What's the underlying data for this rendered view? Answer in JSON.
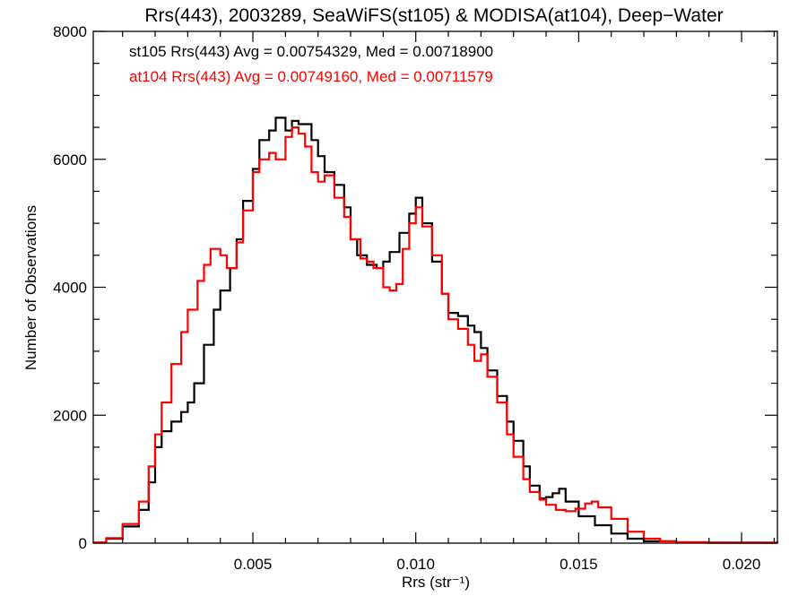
{
  "chart_data": {
    "type": "line",
    "title": "Rrs(443), 2003289, SeaWiFS(st105) & MODISA(at104), Deep−Water",
    "xlabel": "Rrs (str⁻¹)",
    "ylabel": "Number of Observations",
    "xlim": [
      0.0001,
      0.0211
    ],
    "ylim": [
      0,
      8000
    ],
    "x_ticks": [
      {
        "value": 0.005,
        "label": "0.005"
      },
      {
        "value": 0.01,
        "label": "0.010"
      },
      {
        "value": 0.015,
        "label": "0.015"
      },
      {
        "value": 0.02,
        "label": "0.020"
      }
    ],
    "y_ticks": [
      {
        "value": 0,
        "label": "0"
      },
      {
        "value": 2000,
        "label": "2000"
      },
      {
        "value": 4000,
        "label": "4000"
      },
      {
        "value": 6000,
        "label": "6000"
      },
      {
        "value": 8000,
        "label": "8000"
      }
    ],
    "grid": false,
    "series": [
      {
        "name": "st105",
        "label": "st105 Rrs(443) Avg = 0.00754329, Med = 0.00718900",
        "color": "#000000",
        "points": [
          [
            0.0001,
            10
          ],
          [
            0.0005,
            70
          ],
          [
            0.001,
            260
          ],
          [
            0.0015,
            520
          ],
          [
            0.0018,
            950
          ],
          [
            0.002,
            1500
          ],
          [
            0.0022,
            1750
          ],
          [
            0.0025,
            1900
          ],
          [
            0.0028,
            2050
          ],
          [
            0.003,
            2200
          ],
          [
            0.0032,
            2500
          ],
          [
            0.0035,
            3100
          ],
          [
            0.0038,
            3650
          ],
          [
            0.004,
            3950
          ],
          [
            0.0043,
            4300
          ],
          [
            0.0045,
            4750
          ],
          [
            0.0047,
            5350
          ],
          [
            0.005,
            5850
          ],
          [
            0.0052,
            6300
          ],
          [
            0.0055,
            6450
          ],
          [
            0.0057,
            6650
          ],
          [
            0.006,
            6450
          ],
          [
            0.0062,
            6600
          ],
          [
            0.0064,
            6550
          ],
          [
            0.0066,
            6550
          ],
          [
            0.0068,
            6300
          ],
          [
            0.007,
            6050
          ],
          [
            0.0072,
            5800
          ],
          [
            0.0075,
            5600
          ],
          [
            0.0078,
            5250
          ],
          [
            0.008,
            4750
          ],
          [
            0.0082,
            4500
          ],
          [
            0.0085,
            4350
          ],
          [
            0.0088,
            4300
          ],
          [
            0.009,
            4400
          ],
          [
            0.0092,
            4550
          ],
          [
            0.0095,
            4850
          ],
          [
            0.0098,
            5150
          ],
          [
            0.01,
            5400
          ],
          [
            0.0102,
            5000
          ],
          [
            0.0105,
            4400
          ],
          [
            0.0108,
            3900
          ],
          [
            0.011,
            3600
          ],
          [
            0.0113,
            3550
          ],
          [
            0.0116,
            3400
          ],
          [
            0.0118,
            3300
          ],
          [
            0.012,
            3050
          ],
          [
            0.0122,
            2700
          ],
          [
            0.0125,
            2300
          ],
          [
            0.0128,
            1900
          ],
          [
            0.013,
            1600
          ],
          [
            0.0133,
            1200
          ],
          [
            0.0135,
            900
          ],
          [
            0.0138,
            700
          ],
          [
            0.014,
            720
          ],
          [
            0.0142,
            780
          ],
          [
            0.0144,
            850
          ],
          [
            0.0146,
            650
          ],
          [
            0.015,
            420
          ],
          [
            0.0155,
            280
          ],
          [
            0.016,
            150
          ],
          [
            0.0165,
            70
          ],
          [
            0.017,
            30
          ],
          [
            0.018,
            10
          ],
          [
            0.0211,
            0
          ]
        ]
      },
      {
        "name": "at104",
        "label": "at104 Rrs(443) Avg = 0.00749160, Med = 0.00711579",
        "color": "#ff0000",
        "points": [
          [
            0.0001,
            10
          ],
          [
            0.0005,
            80
          ],
          [
            0.001,
            300
          ],
          [
            0.0015,
            650
          ],
          [
            0.0018,
            1200
          ],
          [
            0.002,
            1700
          ],
          [
            0.0022,
            2200
          ],
          [
            0.0025,
            2800
          ],
          [
            0.0028,
            3300
          ],
          [
            0.003,
            3650
          ],
          [
            0.0033,
            4100
          ],
          [
            0.0035,
            4350
          ],
          [
            0.0037,
            4600
          ],
          [
            0.004,
            4500
          ],
          [
            0.0042,
            4300
          ],
          [
            0.0045,
            4700
          ],
          [
            0.0047,
            5200
          ],
          [
            0.005,
            5800
          ],
          [
            0.0052,
            6000
          ],
          [
            0.0055,
            6100
          ],
          [
            0.0057,
            6000
          ],
          [
            0.006,
            6350
          ],
          [
            0.0062,
            6500
          ],
          [
            0.0064,
            6400
          ],
          [
            0.0066,
            6200
          ],
          [
            0.0068,
            5800
          ],
          [
            0.007,
            5650
          ],
          [
            0.0072,
            5750
          ],
          [
            0.0075,
            5400
          ],
          [
            0.0078,
            5100
          ],
          [
            0.008,
            4750
          ],
          [
            0.0083,
            4450
          ],
          [
            0.0085,
            4400
          ],
          [
            0.0087,
            4300
          ],
          [
            0.009,
            4000
          ],
          [
            0.0092,
            3950
          ],
          [
            0.0094,
            4050
          ],
          [
            0.0096,
            4600
          ],
          [
            0.0098,
            5000
          ],
          [
            0.01,
            5250
          ],
          [
            0.0102,
            4950
          ],
          [
            0.0105,
            4500
          ],
          [
            0.0108,
            3900
          ],
          [
            0.011,
            3500
          ],
          [
            0.0113,
            3350
          ],
          [
            0.0116,
            3100
          ],
          [
            0.0118,
            2850
          ],
          [
            0.012,
            2950
          ],
          [
            0.0122,
            2600
          ],
          [
            0.0125,
            2200
          ],
          [
            0.0128,
            1700
          ],
          [
            0.013,
            1350
          ],
          [
            0.0133,
            1000
          ],
          [
            0.0135,
            800
          ],
          [
            0.0138,
            680
          ],
          [
            0.014,
            600
          ],
          [
            0.0143,
            520
          ],
          [
            0.0146,
            500
          ],
          [
            0.0149,
            540
          ],
          [
            0.0152,
            620
          ],
          [
            0.0154,
            650
          ],
          [
            0.0156,
            560
          ],
          [
            0.016,
            380
          ],
          [
            0.0165,
            180
          ],
          [
            0.017,
            70
          ],
          [
            0.0175,
            30
          ],
          [
            0.018,
            15
          ],
          [
            0.019,
            5
          ],
          [
            0.0211,
            0
          ]
        ]
      }
    ],
    "legend": "top-left"
  }
}
